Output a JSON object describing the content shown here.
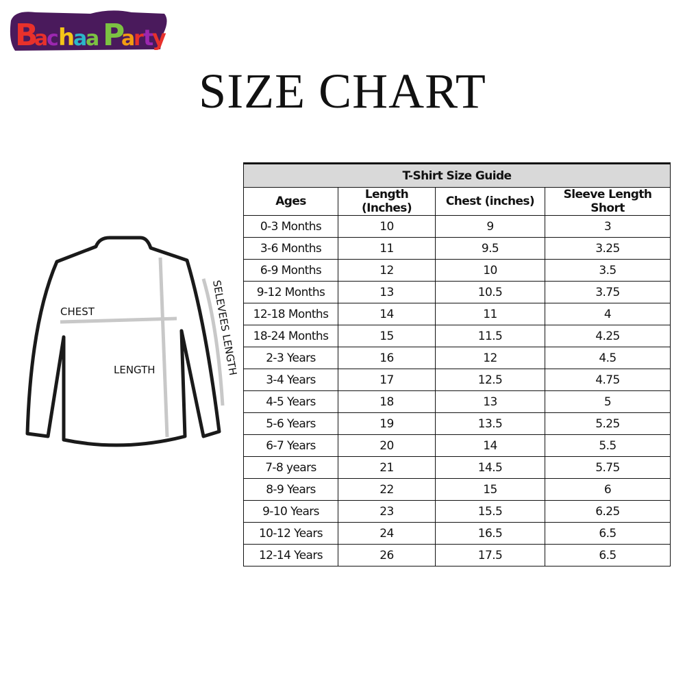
{
  "logo": {
    "text": "BachaaParty",
    "colors": [
      "#e8312b",
      "#9c27b0",
      "#f5c518",
      "#2bb7c9",
      "#7cc242",
      "#f39c12",
      "#4a1a5c"
    ]
  },
  "title": "SIZE CHART",
  "diagram": {
    "chest_label": "CHEST",
    "length_label": "LENGTH",
    "sleeve_label": "SELEVEES LENGTH"
  },
  "table": {
    "caption": "T-Shirt Size Guide",
    "columns": [
      "Ages",
      "Length (Inches)",
      "Chest (inches)",
      "Sleeve Length Short"
    ],
    "rows": [
      [
        "0-3 Months",
        "10",
        "9",
        "3"
      ],
      [
        "3-6 Months",
        "11",
        "9.5",
        "3.25"
      ],
      [
        "6-9 Months",
        "12",
        "10",
        "3.5"
      ],
      [
        "9-12 Months",
        "13",
        "10.5",
        "3.75"
      ],
      [
        "12-18 Months",
        "14",
        "11",
        "4"
      ],
      [
        "18-24 Months",
        "15",
        "11.5",
        "4.25"
      ],
      [
        "2-3 Years",
        "16",
        "12",
        "4.5"
      ],
      [
        "3-4 Years",
        "17",
        "12.5",
        "4.75"
      ],
      [
        "4-5 Years",
        "18",
        "13",
        "5"
      ],
      [
        "5-6 Years",
        "19",
        "13.5",
        "5.25"
      ],
      [
        "6-7 Years",
        "20",
        "14",
        "5.5"
      ],
      [
        "7-8 years",
        "21",
        "14.5",
        "5.75"
      ],
      [
        "8-9 Years",
        "22",
        "15",
        "6"
      ],
      [
        "9-10 Years",
        "23",
        "15.5",
        "6.25"
      ],
      [
        "10-12 Years",
        "24",
        "16.5",
        "6.5"
      ],
      [
        "12-14 Years",
        "26",
        "17.5",
        "6.5"
      ]
    ]
  }
}
